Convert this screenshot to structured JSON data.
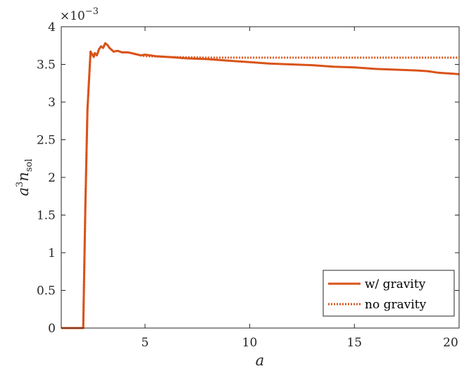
{
  "chart_data": {
    "type": "line",
    "xlabel": "a",
    "ylabel_main": "a",
    "ylabel_sup": "3",
    "ylabel_var": "n",
    "ylabel_sub": "sol",
    "exponent_label": "×10",
    "exponent_power": "−3",
    "xlim": [
      1,
      20
    ],
    "ylim": [
      0,
      4
    ],
    "y_scale_factor": 0.001,
    "xticks": [
      5,
      10,
      15,
      20
    ],
    "xtick_labels": [
      "5",
      "10",
      "15",
      "20"
    ],
    "yticks": [
      0,
      0.5,
      1,
      1.5,
      2,
      2.5,
      3,
      3.5,
      4
    ],
    "ytick_labels": [
      "0",
      "0.5",
      "1",
      "1.5",
      "2",
      "2.5",
      "3",
      "3.5",
      "4"
    ],
    "grid": false,
    "legend_position": "bottom-right",
    "line_color": "#D95319",
    "series": [
      {
        "name": "w/ gravity",
        "style": "solid",
        "x": [
          1.0,
          1.9,
          2.05,
          2.15,
          2.25,
          2.4,
          2.55,
          2.6,
          2.7,
          2.8,
          2.9,
          3.0,
          3.1,
          3.2,
          3.3,
          3.5,
          3.7,
          3.9,
          4.2,
          4.5,
          4.8,
          5.0,
          5.5,
          6.0,
          7.0,
          8.0,
          9.0,
          10.0,
          11.0,
          12.0,
          13.0,
          14.0,
          15.0,
          15.5,
          16.0,
          17.0,
          18.0,
          18.5,
          19.0,
          19.5,
          20.0
        ],
        "y": [
          0.0,
          0.0,
          0.0,
          1.6,
          2.9,
          3.67,
          3.6,
          3.65,
          3.62,
          3.7,
          3.74,
          3.72,
          3.78,
          3.76,
          3.72,
          3.67,
          3.68,
          3.66,
          3.66,
          3.64,
          3.62,
          3.63,
          3.61,
          3.6,
          3.58,
          3.57,
          3.55,
          3.53,
          3.51,
          3.5,
          3.49,
          3.47,
          3.46,
          3.45,
          3.44,
          3.43,
          3.42,
          3.41,
          3.39,
          3.38,
          3.37
        ]
      },
      {
        "name": "no gravity",
        "style": "dotted",
        "x": [
          1.0,
          1.9,
          2.05,
          2.15,
          2.25,
          2.4,
          2.55,
          2.6,
          2.7,
          2.8,
          2.9,
          3.0,
          3.1,
          3.2,
          3.3,
          3.5,
          3.7,
          3.9,
          4.2,
          4.5,
          4.8,
          5.0,
          6.0,
          8.0,
          10.0,
          12.0,
          14.0,
          16.0,
          18.0,
          20.0
        ],
        "y": [
          0.0,
          0.0,
          0.0,
          1.6,
          2.9,
          3.67,
          3.6,
          3.65,
          3.62,
          3.7,
          3.74,
          3.72,
          3.78,
          3.76,
          3.72,
          3.67,
          3.68,
          3.66,
          3.66,
          3.64,
          3.62,
          3.61,
          3.6,
          3.59,
          3.59,
          3.59,
          3.59,
          3.59,
          3.59,
          3.59
        ]
      }
    ]
  }
}
